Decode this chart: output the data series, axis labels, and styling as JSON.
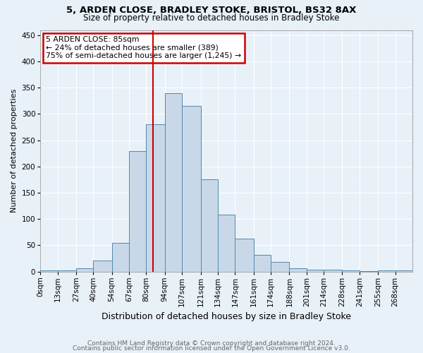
{
  "title1": "5, ARDEN CLOSE, BRADLEY STOKE, BRISTOL, BS32 8AX",
  "title2": "Size of property relative to detached houses in Bradley Stoke",
  "xlabel": "Distribution of detached houses by size in Bradley Stoke",
  "ylabel": "Number of detached properties",
  "footnote1": "Contains HM Land Registry data © Crown copyright and database right 2024.",
  "footnote2": "Contains public sector information licensed under the Open Government Licence v3.0.",
  "bin_edges": [
    0,
    13,
    27,
    40,
    54,
    67,
    80,
    94,
    107,
    121,
    134,
    147,
    161,
    174,
    188,
    201,
    214,
    228,
    241,
    255,
    268,
    281
  ],
  "bin_labels": [
    "0sqm",
    "13sqm",
    "27sqm",
    "40sqm",
    "54sqm",
    "67sqm",
    "80sqm",
    "94sqm",
    "107sqm",
    "121sqm",
    "134sqm",
    "147sqm",
    "161sqm",
    "174sqm",
    "188sqm",
    "201sqm",
    "214sqm",
    "228sqm",
    "241sqm",
    "255sqm",
    "268sqm"
  ],
  "bar_heights": [
    2,
    2,
    6,
    21,
    54,
    229,
    280,
    340,
    315,
    175,
    108,
    63,
    32,
    18,
    6,
    3,
    3,
    2,
    1,
    2,
    2
  ],
  "bar_color": "#c8d8e8",
  "bar_edge_color": "#5588aa",
  "property_value": 85,
  "property_line_color": "#cc0000",
  "annotation_line1": "5 ARDEN CLOSE: 85sqm",
  "annotation_line2": "← 24% of detached houses are smaller (389)",
  "annotation_line3": "75% of semi-detached houses are larger (1,245) →",
  "annotation_box_color": "#ffffff",
  "annotation_box_edge_color": "#cc0000",
  "ylim": [
    0,
    460
  ],
  "yticks": [
    0,
    50,
    100,
    150,
    200,
    250,
    300,
    350,
    400,
    450
  ],
  "background_color": "#e8f0f8",
  "plot_bg_color": "#e8f0f8",
  "grid_color": "#ffffff",
  "title1_fontsize": 9.5,
  "title2_fontsize": 8.5,
  "ylabel_fontsize": 8,
  "xlabel_fontsize": 9,
  "tick_fontsize": 7.5,
  "footnote_fontsize": 6.5
}
